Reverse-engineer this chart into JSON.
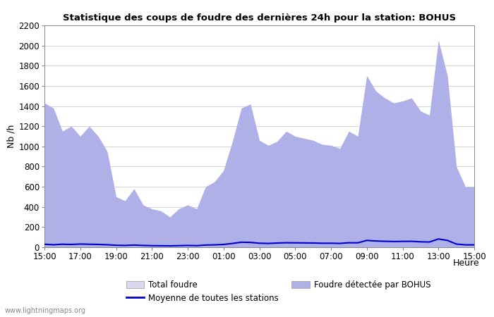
{
  "title": "Statistique des coups de foudre des dernières 24h pour la station: BOHUS",
  "ylabel": "Nb /h",
  "xlabel": "Heure",
  "watermark": "www.lightningmaps.org",
  "ylim": [
    0,
    2200
  ],
  "yticks": [
    0,
    200,
    400,
    600,
    800,
    1000,
    1200,
    1400,
    1600,
    1800,
    2000,
    2200
  ],
  "xtick_labels": [
    "15:00",
    "17:00",
    "19:00",
    "21:00",
    "23:00",
    "01:00",
    "03:00",
    "05:00",
    "07:00",
    "09:00",
    "11:00",
    "13:00",
    "15:00"
  ],
  "fill_color_total": "#d8d8f0",
  "fill_color_bohus": "#b0b0e8",
  "line_color_mean": "#0000cc",
  "legend_total": "Total foudre",
  "legend_bohus": "Foudre détectée par BOHUS",
  "legend_mean": "Moyenne de toutes les stations",
  "x_total": [
    0,
    1,
    2,
    3,
    4,
    5,
    6,
    7,
    8,
    9,
    10,
    11,
    12,
    13,
    14,
    15,
    16,
    17,
    18,
    19,
    20,
    21,
    22,
    23,
    24,
    25,
    26,
    27,
    28,
    29,
    30,
    31,
    32,
    33,
    34,
    35,
    36,
    37,
    38,
    39,
    40,
    41,
    42,
    43,
    44,
    45,
    46,
    47,
    48
  ],
  "y_total": [
    1430,
    1380,
    1150,
    1200,
    1100,
    1200,
    1100,
    950,
    500,
    460,
    580,
    420,
    380,
    360,
    300,
    380,
    420,
    380,
    600,
    650,
    760,
    1050,
    1380,
    1420,
    1060,
    1010,
    1050,
    1150,
    1100,
    1080,
    1060,
    1020,
    1010,
    980,
    1150,
    1100,
    1700,
    1550,
    1480,
    1430,
    1450,
    1480,
    1350,
    1310,
    2050,
    1700,
    800,
    600,
    600
  ],
  "y_bohus": [
    1430,
    1380,
    1150,
    1200,
    1100,
    1200,
    1100,
    950,
    500,
    460,
    580,
    420,
    380,
    360,
    300,
    380,
    420,
    380,
    600,
    650,
    760,
    1050,
    1380,
    1420,
    1060,
    1010,
    1050,
    1150,
    1100,
    1080,
    1060,
    1020,
    1010,
    980,
    1150,
    1100,
    1700,
    1550,
    1480,
    1430,
    1450,
    1480,
    1350,
    1310,
    2050,
    1700,
    800,
    600,
    600
  ],
  "y_mean": [
    30,
    25,
    30,
    28,
    32,
    30,
    28,
    25,
    20,
    18,
    22,
    18,
    16,
    15,
    14,
    16,
    18,
    16,
    22,
    24,
    28,
    38,
    50,
    48,
    40,
    38,
    42,
    45,
    44,
    43,
    42,
    40,
    40,
    38,
    45,
    44,
    68,
    62,
    59,
    57,
    58,
    59,
    54,
    52,
    82,
    68,
    32,
    24,
    24
  ]
}
